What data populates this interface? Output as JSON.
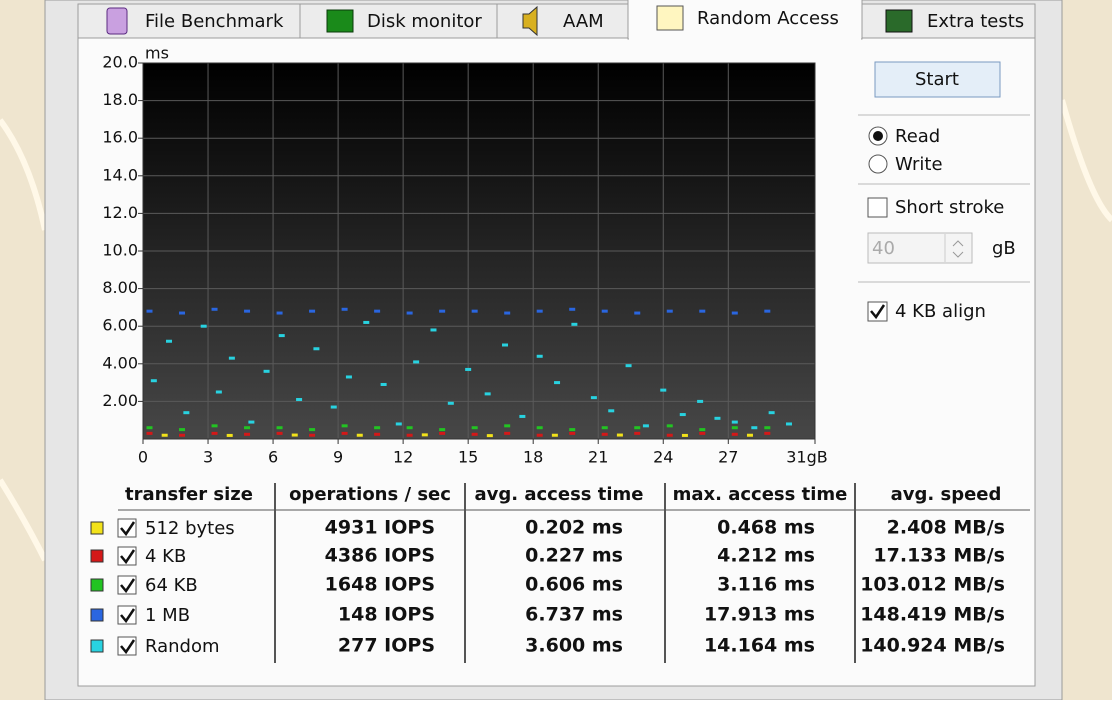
{
  "tabs": [
    "File Benchmark",
    "Disk monitor",
    "AAM",
    "Random Access",
    "Extra tests"
  ],
  "chart_data": {
    "type": "scatter",
    "y_unit": "ms",
    "xlim": [
      0,
      31
    ],
    "ylim": [
      0,
      20
    ],
    "xticks": [
      0,
      3,
      6,
      9,
      12,
      15,
      18,
      21,
      24,
      27,
      {
        "value": 31,
        "label": "31gB"
      }
    ],
    "yticks": [
      {
        "value": 2,
        "label": "2.00"
      },
      {
        "value": 4,
        "label": "4.00"
      },
      {
        "value": 6,
        "label": "6.00"
      },
      {
        "value": 8,
        "label": "8.00"
      },
      {
        "value": 10,
        "label": "10.0"
      },
      {
        "value": 12,
        "label": "12.0"
      },
      {
        "value": 14,
        "label": "14.0"
      },
      {
        "value": 16,
        "label": "16.0"
      },
      {
        "value": 18,
        "label": "18.0"
      },
      {
        "value": 20,
        "label": "20.0"
      }
    ],
    "grid": true,
    "series": [
      {
        "name": "512 bytes",
        "color": "#f2e21a",
        "x": [
          1,
          4,
          7,
          10,
          13,
          16,
          19,
          22,
          25,
          28
        ],
        "values": [
          0.2,
          0.19,
          0.21,
          0.2,
          0.22,
          0.18,
          0.2,
          0.21,
          0.19,
          0.2
        ]
      },
      {
        "name": "4 KB",
        "color": "#d41818",
        "x": [
          0.3,
          1.8,
          3.3,
          4.8,
          6.3,
          7.8,
          9.3,
          10.8,
          12.3,
          13.8,
          15.3,
          16.8,
          18.3,
          19.8,
          21.3,
          22.8,
          24.3,
          25.8,
          27.3,
          28.8
        ],
        "values": [
          0.3,
          0.2,
          0.3,
          0.25,
          0.3,
          0.2,
          0.3,
          0.25,
          0.2,
          0.3,
          0.25,
          0.3,
          0.2,
          0.3,
          0.25,
          0.3,
          0.2,
          0.3,
          0.25,
          0.3
        ]
      },
      {
        "name": "64 KB",
        "color": "#22c422",
        "x": [
          0.3,
          1.8,
          3.3,
          4.8,
          6.3,
          7.8,
          9.3,
          10.8,
          12.3,
          13.8,
          15.3,
          16.8,
          18.3,
          19.8,
          21.3,
          22.8,
          24.3,
          25.8,
          27.3,
          28.8
        ],
        "values": [
          0.6,
          0.5,
          0.7,
          0.6,
          0.6,
          0.5,
          0.7,
          0.6,
          0.6,
          0.5,
          0.6,
          0.7,
          0.6,
          0.5,
          0.6,
          0.6,
          0.7,
          0.5,
          0.6,
          0.6
        ]
      },
      {
        "name": "1 MB",
        "color": "#2a66e0",
        "x": [
          0.3,
          1.8,
          3.3,
          4.8,
          6.3,
          7.8,
          9.3,
          10.8,
          12.3,
          13.8,
          15.3,
          16.8,
          18.3,
          19.8,
          21.3,
          22.8,
          24.3,
          25.8,
          27.3,
          28.8
        ],
        "values": [
          6.8,
          6.7,
          6.9,
          6.8,
          6.7,
          6.8,
          6.9,
          6.8,
          6.7,
          6.8,
          6.8,
          6.7,
          6.8,
          6.9,
          6.8,
          6.7,
          6.8,
          6.8,
          6.7,
          6.8
        ]
      },
      {
        "name": "Random",
        "color": "#28d2e0",
        "x": [
          0.5,
          1.2,
          2.0,
          2.8,
          3.5,
          4.1,
          5.0,
          5.7,
          6.4,
          7.2,
          8.0,
          8.8,
          9.5,
          10.3,
          11.1,
          11.8,
          12.6,
          13.4,
          14.2,
          15.0,
          15.9,
          16.7,
          17.5,
          18.3,
          19.1,
          19.9,
          20.8,
          21.6,
          22.4,
          23.2,
          24.0,
          24.9,
          25.7,
          26.5,
          27.3,
          28.2,
          29.0,
          29.8
        ],
        "values": [
          3.1,
          5.2,
          1.4,
          6.0,
          2.5,
          4.3,
          0.9,
          3.6,
          5.5,
          2.1,
          4.8,
          1.7,
          3.3,
          6.2,
          2.9,
          0.8,
          4.1,
          5.8,
          1.9,
          3.7,
          2.4,
          5.0,
          1.2,
          4.4,
          3.0,
          6.1,
          2.2,
          1.5,
          3.9,
          0.7,
          2.6,
          1.3,
          2.0,
          1.1,
          0.9,
          0.6,
          1.4,
          0.8
        ]
      }
    ]
  },
  "controls": {
    "start": "Start",
    "read": "Read",
    "write": "Write",
    "short_stroke": "Short stroke",
    "short_stroke_value": "40",
    "short_stroke_unit": "gB",
    "align": "4 KB align"
  },
  "table": {
    "columns": [
      "transfer size",
      "operations / sec",
      "avg. access time",
      "max. access time",
      "avg. speed"
    ],
    "rows": [
      [
        "4931 IOPS",
        "0.202 ms",
        "0.468 ms",
        "2.408 MB/s"
      ],
      [
        "4386 IOPS",
        "0.227 ms",
        "4.212 ms",
        "17.133 MB/s"
      ],
      [
        "1648 IOPS",
        "0.606 ms",
        "3.116 ms",
        "103.012 MB/s"
      ],
      [
        "148 IOPS",
        "6.737 ms",
        "17.913 ms",
        "148.419 MB/s"
      ],
      [
        "277 IOPS",
        "3.600 ms",
        "14.164 ms",
        "140.924 MB/s"
      ]
    ]
  }
}
